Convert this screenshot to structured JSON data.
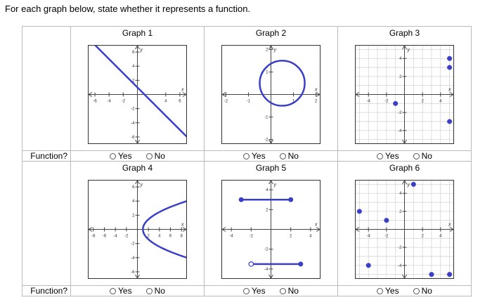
{
  "instruction": "For each graph below, state whether it represents a function.",
  "function_label": "Function?",
  "options": {
    "yes": "Yes",
    "no": "No"
  },
  "colors": {
    "curve": "#3b3fc7",
    "grid": "#d5d5d5",
    "axis": "#444"
  },
  "graphs": [
    {
      "title": "Graph 1",
      "xlim": [
        -7,
        7
      ],
      "ylim": [
        -7,
        7
      ],
      "grid": false,
      "xticks": [
        "-6",
        "-4",
        "-2",
        "4",
        "6"
      ],
      "yticks": [
        "6",
        "4",
        "2",
        "-2",
        "-4",
        "-6"
      ],
      "line": [
        [
          -6,
          7
        ],
        [
          7,
          -6
        ]
      ],
      "points": [],
      "open_points": []
    },
    {
      "title": "Graph 2",
      "xlim": [
        -2.2,
        2.2
      ],
      "ylim": [
        -2.2,
        2.2
      ],
      "grid": false,
      "xticks": [
        "-2",
        "-1",
        "1",
        "2"
      ],
      "yticks": [
        "2",
        "1",
        "-1",
        "-2"
      ],
      "circle": {
        "cx": 0.5,
        "cy": 0.5,
        "r": 1
      },
      "points": [],
      "open_points": []
    },
    {
      "title": "Graph 3",
      "xlim": [
        -5.5,
        5.5
      ],
      "ylim": [
        -5.5,
        5.5
      ],
      "grid": true,
      "xticks": [
        "-4",
        "-2",
        "2",
        "4"
      ],
      "yticks": [
        "4",
        "2",
        "-2",
        "-4"
      ],
      "points": [
        [
          5,
          4
        ],
        [
          5,
          3
        ],
        [
          -1,
          -1
        ],
        [
          5,
          -3
        ]
      ],
      "open_points": []
    },
    {
      "title": "Graph 4",
      "xlim": [
        -9,
        9
      ],
      "ylim": [
        -7,
        7
      ],
      "grid": false,
      "xticks": [
        "-8",
        "-6",
        "-4",
        "-2",
        "2",
        "4",
        "6",
        "8"
      ],
      "yticks": [
        "6",
        "4",
        "2",
        "-2",
        "-4",
        "-6"
      ],
      "parabola": {
        "vertex": [
          1,
          0
        ],
        "a": 0.5
      },
      "points": [],
      "open_points": []
    },
    {
      "title": "Graph 5",
      "xlim": [
        -5,
        5
      ],
      "ylim": [
        -5,
        5
      ],
      "grid": false,
      "xticks": [
        "-4",
        "-2",
        "2",
        "4"
      ],
      "yticks": [
        "4",
        "2",
        "-2",
        "-4"
      ],
      "segments": [
        [
          [
            -3,
            3
          ],
          [
            2,
            3
          ]
        ],
        [
          [
            -2,
            -3.5
          ],
          [
            3,
            -3.5
          ]
        ]
      ],
      "points": [
        [
          -3,
          3
        ],
        [
          2,
          3
        ],
        [
          3,
          -3.5
        ]
      ],
      "open_points": [
        [
          -2,
          -3.5
        ]
      ]
    },
    {
      "title": "Graph 6",
      "xlim": [
        -5.5,
        5.5
      ],
      "ylim": [
        -5.5,
        5.5
      ],
      "grid": true,
      "xticks": [
        "-4",
        "-2",
        "2",
        "4"
      ],
      "yticks": [
        "4",
        "2",
        "-2",
        "-4"
      ],
      "points": [
        [
          -5,
          2
        ],
        [
          -2,
          1
        ],
        [
          1,
          5
        ],
        [
          -4,
          -4
        ],
        [
          3,
          -5
        ],
        [
          5,
          -5
        ]
      ],
      "open_points": []
    }
  ]
}
